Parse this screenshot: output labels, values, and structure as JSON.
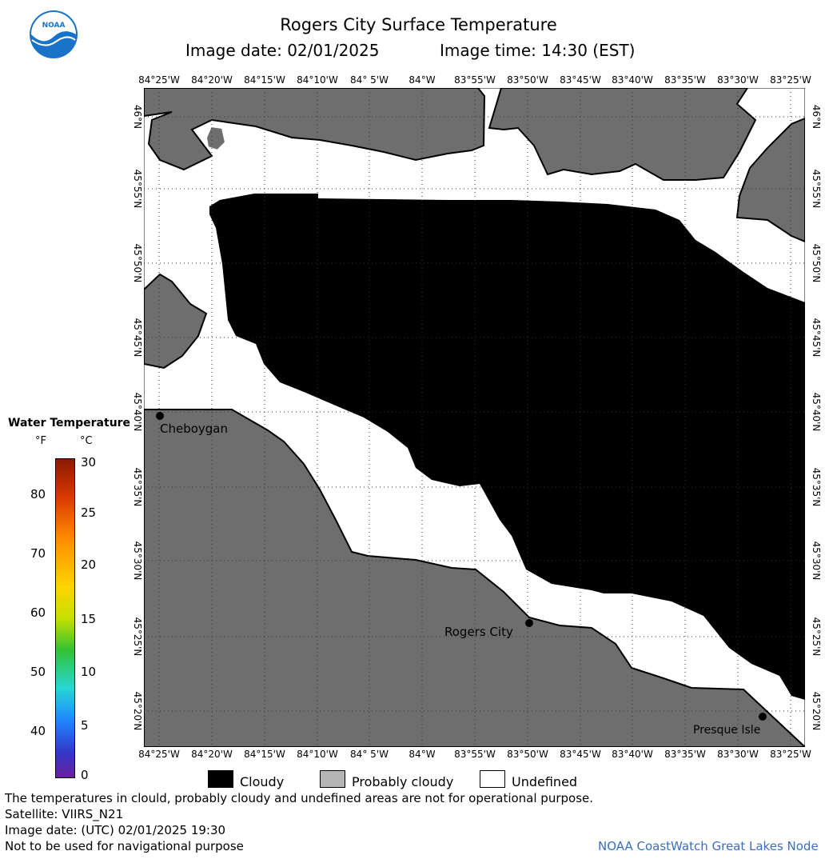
{
  "title": "Rogers City Surface Temperature",
  "subtitle": {
    "date_label": "Image date:",
    "date": "02/01/2025",
    "time_label": "Image time:",
    "time": "14:30 (EST)"
  },
  "logo": {
    "text": "NOAA"
  },
  "map": {
    "lon_labels": [
      "84°25'W",
      "84°20'W",
      "84°15'W",
      "84°10'W",
      "84° 5'W",
      "84°W",
      "83°55'W",
      "83°50'W",
      "83°45'W",
      "83°40'W",
      "83°35'W",
      "83°30'W",
      "83°25'W"
    ],
    "lat_labels": [
      "46°N",
      "45°55'N",
      "45°50'N",
      "45°45'N",
      "45°40'N",
      "45°35'N",
      "45°30'N",
      "45°25'N",
      "45°20'N"
    ],
    "places": [
      {
        "name": "Cheboygan"
      },
      {
        "name": "Rogers City"
      },
      {
        "name": "Presque Isle"
      }
    ],
    "colors": {
      "land": "#6e6e6e",
      "cloud": "#000000",
      "undefined": "#ffffff",
      "grid": "#555555"
    }
  },
  "color_scale": {
    "title": "Water Temperature",
    "unit_f": "°F",
    "unit_c": "°C",
    "f_ticks": [
      "80",
      "70",
      "60",
      "50",
      "40"
    ],
    "c_ticks": [
      "30",
      "25",
      "20",
      "15",
      "10",
      "5",
      "0"
    ]
  },
  "legend": {
    "items": [
      {
        "label": "Cloudy",
        "color": "#000000"
      },
      {
        "label": "Probably cloudy",
        "color": "#b4b4b4"
      },
      {
        "label": "Undefined",
        "color": "#ffffff"
      }
    ]
  },
  "footer": {
    "line1": "The temperatures in clould, probably cloudy and undefined areas are not for operational purpose.",
    "line2": "Satellite: VIIRS_N21",
    "line3": "Image date: (UTC) 02/01/2025  19:30",
    "line4": "Not to be used for navigational purpose",
    "credit": "NOAA CoastWatch Great Lakes Node"
  }
}
